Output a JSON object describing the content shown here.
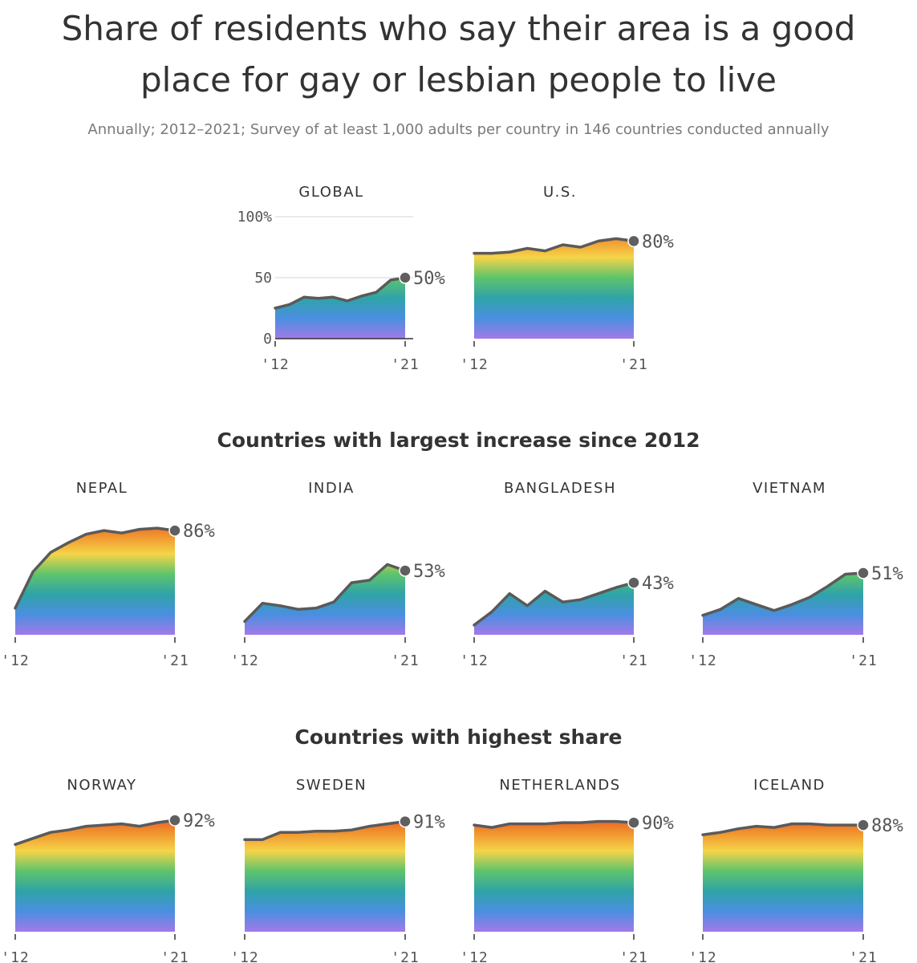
{
  "header": {
    "title_line1": "Share of residents who say their area is a good",
    "title_line2": "place for gay or lesbian people to live",
    "subtitle": "Annually; 2012–2021; Survey of at least 1,000 adults per country in 146 countries conducted annually"
  },
  "sections": {
    "increase_title": "Countries with largest increase since 2012",
    "highest_title": "Countries with highest share"
  },
  "colors": {
    "line": "#5a5a5a",
    "dot": "#5f5f5f",
    "grid": "#dddddd",
    "rainbow_top_to_bottom": [
      "#e0442f",
      "#f08c2c",
      "#f5d448",
      "#5ec46b",
      "#2fa3a8",
      "#4a8fe0",
      "#a27ae8"
    ]
  },
  "chart_data": [
    {
      "type": "area",
      "title": "GLOBAL",
      "x": [
        2012,
        2013,
        2014,
        2015,
        2016,
        2017,
        2018,
        2019,
        2020,
        2021
      ],
      "x_tick_labels": [
        "'12",
        "'21"
      ],
      "y_tick_labels": [
        "100%",
        "50",
        "0"
      ],
      "ylim": [
        0,
        100
      ],
      "values": [
        25,
        28,
        34,
        33,
        34,
        31,
        35,
        38,
        48,
        50
      ],
      "end_label": "50%",
      "grid": true
    },
    {
      "type": "area",
      "title": "U.S.",
      "x": [
        2012,
        2013,
        2014,
        2015,
        2016,
        2017,
        2018,
        2019,
        2020,
        2021
      ],
      "x_tick_labels": [
        "'12",
        "'21"
      ],
      "ylim": [
        0,
        100
      ],
      "values": [
        70,
        70,
        71,
        74,
        72,
        77,
        75,
        80,
        82,
        80
      ],
      "end_label": "80%"
    },
    {
      "type": "area",
      "title": "NEPAL",
      "x": [
        2012,
        2013,
        2014,
        2015,
        2016,
        2017,
        2018,
        2019,
        2020,
        2021
      ],
      "x_tick_labels": [
        "'12",
        "'21"
      ],
      "ylim": [
        0,
        100
      ],
      "values": [
        22,
        52,
        68,
        76,
        83,
        86,
        84,
        87,
        88,
        86
      ],
      "end_label": "86%"
    },
    {
      "type": "area",
      "title": "INDIA",
      "x": [
        2012,
        2013,
        2014,
        2015,
        2016,
        2017,
        2018,
        2019,
        2020,
        2021
      ],
      "x_tick_labels": [
        "'12",
        "'21"
      ],
      "ylim": [
        0,
        100
      ],
      "values": [
        11,
        26,
        24,
        21,
        22,
        27,
        43,
        45,
        58,
        53
      ],
      "end_label": "53%"
    },
    {
      "type": "area",
      "title": "BANGLADESH",
      "x": [
        2012,
        2013,
        2014,
        2015,
        2016,
        2017,
        2018,
        2019,
        2020,
        2021
      ],
      "x_tick_labels": [
        "'12",
        "'21"
      ],
      "ylim": [
        0,
        100
      ],
      "values": [
        8,
        19,
        34,
        24,
        36,
        27,
        29,
        34,
        39,
        43
      ],
      "end_label": "43%"
    },
    {
      "type": "area",
      "title": "VIETNAM",
      "x": [
        2012,
        2013,
        2014,
        2015,
        2016,
        2017,
        2018,
        2019,
        2020,
        2021
      ],
      "x_tick_labels": [
        "'12",
        "'21"
      ],
      "ylim": [
        0,
        100
      ],
      "values": [
        16,
        21,
        30,
        25,
        20,
        25,
        31,
        40,
        50,
        51
      ],
      "end_label": "51%"
    },
    {
      "type": "area",
      "title": "NORWAY",
      "x": [
        2012,
        2013,
        2014,
        2015,
        2016,
        2017,
        2018,
        2019,
        2020,
        2021
      ],
      "x_tick_labels": [
        "'12",
        "'21"
      ],
      "ylim": [
        0,
        100
      ],
      "values": [
        72,
        77,
        82,
        84,
        87,
        88,
        89,
        87,
        90,
        92
      ],
      "end_label": "92%"
    },
    {
      "type": "area",
      "title": "SWEDEN",
      "x": [
        2012,
        2013,
        2014,
        2015,
        2016,
        2017,
        2018,
        2019,
        2020,
        2021
      ],
      "x_tick_labels": [
        "'12",
        "'21"
      ],
      "ylim": [
        0,
        100
      ],
      "values": [
        76,
        76,
        82,
        82,
        83,
        83,
        84,
        87,
        89,
        91
      ],
      "end_label": "91%"
    },
    {
      "type": "area",
      "title": "NETHERLANDS",
      "x": [
        2012,
        2013,
        2014,
        2015,
        2016,
        2017,
        2018,
        2019,
        2020,
        2021
      ],
      "x_tick_labels": [
        "'12",
        "'21"
      ],
      "ylim": [
        0,
        100
      ],
      "values": [
        88,
        86,
        89,
        89,
        89,
        90,
        90,
        91,
        91,
        90
      ],
      "end_label": "90%"
    },
    {
      "type": "area",
      "title": "ICELAND",
      "x": [
        2012,
        2013,
        2014,
        2015,
        2016,
        2017,
        2018,
        2019,
        2020,
        2021
      ],
      "x_tick_labels": [
        "'12",
        "'21"
      ],
      "ylim": [
        0,
        100
      ],
      "values": [
        80,
        82,
        85,
        87,
        86,
        89,
        89,
        88,
        88,
        88
      ],
      "end_label": "88%"
    }
  ]
}
